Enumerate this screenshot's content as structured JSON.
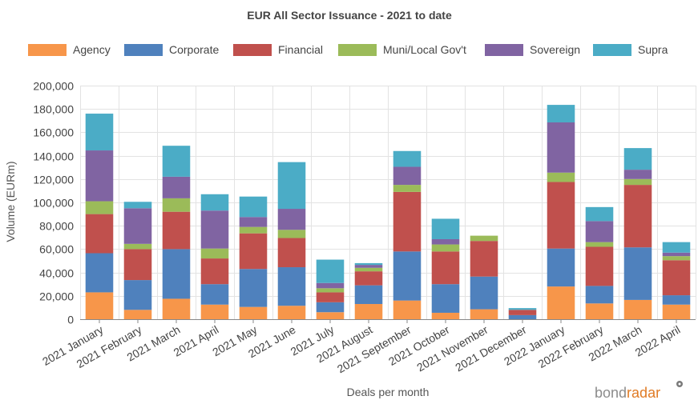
{
  "chart_data": {
    "type": "bar",
    "stacked": true,
    "title": "EUR All Sector Issuance - 2021 to date",
    "xlabel": "Deals per month",
    "ylabel": "Volume (EURm)",
    "ylim": [
      0,
      200000
    ],
    "yticks": [
      0,
      20000,
      40000,
      60000,
      80000,
      100000,
      120000,
      140000,
      160000,
      180000,
      200000
    ],
    "ytick_labels": [
      "0",
      "20,000",
      "40,000",
      "60,000",
      "80,000",
      "100,000",
      "120,000",
      "140,000",
      "160,000",
      "180,000",
      "200,000"
    ],
    "grid": true,
    "legend_position": "top",
    "categories": [
      "2021 January",
      "2021 February",
      "2021 March",
      "2021 April",
      "2021 May",
      "2021 June",
      "2021 July",
      "2021 August",
      "2021 September",
      "2021 October",
      "2021 November",
      "2021 December",
      "2022 January",
      "2022 February",
      "2022 March",
      "2022 April"
    ],
    "series": [
      {
        "name": "Agency",
        "color": "#f7964a",
        "values": [
          23000,
          8000,
          17500,
          12500,
          10500,
          11500,
          6000,
          13000,
          16000,
          5500,
          8500,
          0,
          28000,
          13500,
          16500,
          12500
        ]
      },
      {
        "name": "Corporate",
        "color": "#4f81bd",
        "values": [
          33500,
          25500,
          42500,
          17500,
          32500,
          33000,
          8500,
          16000,
          42000,
          24500,
          28000,
          3500,
          32500,
          15000,
          45000,
          8000
        ]
      },
      {
        "name": "Financial",
        "color": "#c0504d",
        "values": [
          33500,
          26500,
          32000,
          22000,
          30500,
          25000,
          8500,
          12000,
          51000,
          28000,
          30500,
          4500,
          57000,
          33500,
          53500,
          30000
        ]
      },
      {
        "name": "Muni/Local Gov't",
        "color": "#9bbb59",
        "values": [
          11000,
          4500,
          11500,
          8500,
          5500,
          7000,
          3500,
          3000,
          6000,
          6000,
          4500,
          0,
          8000,
          4000,
          5000,
          3500
        ]
      },
      {
        "name": "Sovereign",
        "color": "#8064a2",
        "values": [
          43500,
          30500,
          18500,
          32500,
          8500,
          18000,
          4500,
          2500,
          15500,
          4500,
          0,
          0,
          43000,
          18000,
          8000,
          3000
        ]
      },
      {
        "name": "Supra",
        "color": "#4bacc6",
        "values": [
          31500,
          5500,
          26500,
          14000,
          17500,
          40000,
          20000,
          1500,
          13500,
          17500,
          0,
          1500,
          15000,
          12000,
          18500,
          9000
        ]
      }
    ]
  },
  "branding": {
    "part1": "bond",
    "part2": "radar"
  }
}
